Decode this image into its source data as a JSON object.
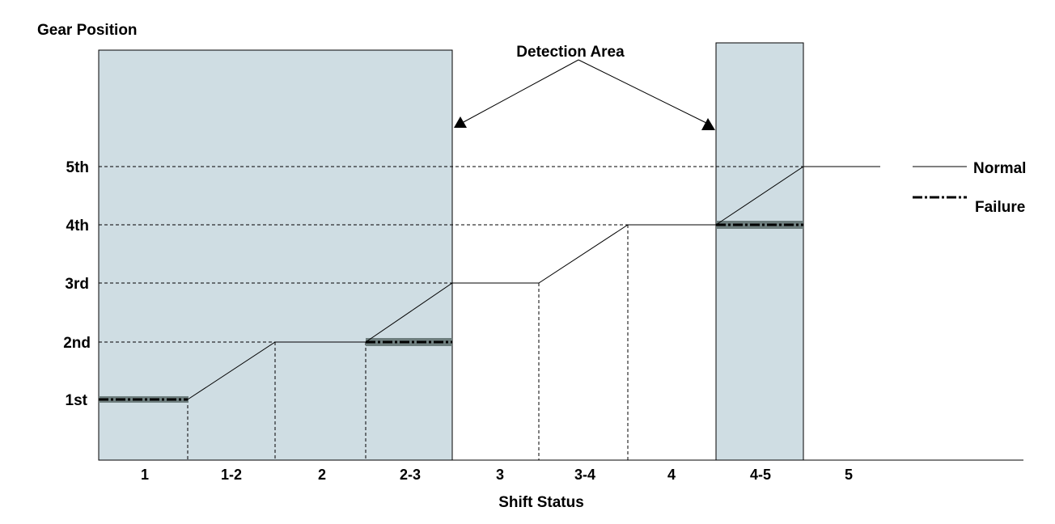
{
  "y_axis_title": "Gear Position",
  "x_axis_title": "Shift Status",
  "gear_levels": [
    "1st",
    "2nd",
    "3rd",
    "4th",
    "5th"
  ],
  "shift_states": [
    "1",
    "1-2",
    "2",
    "2-3",
    "3",
    "3-4",
    "4",
    "4-5",
    "5"
  ],
  "callout": "Detection Area",
  "legend": {
    "normal": "Normal",
    "failure": "Failure"
  },
  "colors": {
    "detection_area": "#cfdde3",
    "failure_highlight": "#6e7e7e",
    "line": "#000000"
  },
  "detection_areas": [
    {
      "from_state": "1",
      "to_state": "2-3"
    },
    {
      "from_state": "4-5",
      "to_state": "4-5"
    }
  ],
  "normal_path": [
    {
      "state": "1",
      "gear": "1st"
    },
    {
      "state": "1-2",
      "gear": "1st → 2nd"
    },
    {
      "state": "2",
      "gear": "2nd"
    },
    {
      "state": "2-3",
      "gear": "2nd → 3rd"
    },
    {
      "state": "3",
      "gear": "3rd"
    },
    {
      "state": "3-4",
      "gear": "3rd → 4th"
    },
    {
      "state": "4",
      "gear": "4th"
    },
    {
      "state": "4-5",
      "gear": "4th → 5th"
    },
    {
      "state": "5",
      "gear": "5th"
    }
  ],
  "failure_path": [
    {
      "state": "1",
      "gear": "1st"
    },
    {
      "state": "2-3",
      "gear": "2nd"
    },
    {
      "state": "4-5",
      "gear": "4th"
    }
  ]
}
